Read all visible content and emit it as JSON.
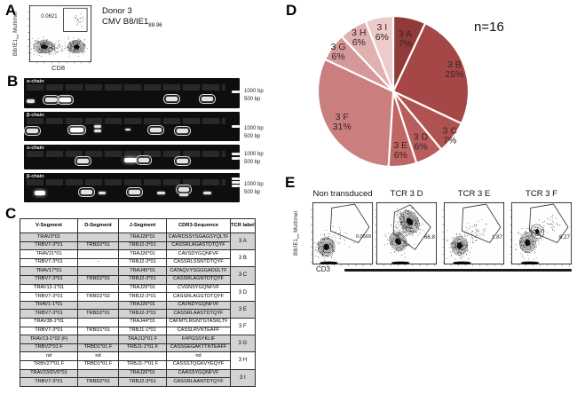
{
  "figure": {
    "panels": {
      "A": {
        "label": "A",
        "donor_line1": "Donor 3",
        "donor_line2_text": "CMV B8/IE1",
        "donor_line2_sub": "88-96",
        "gate_value": "0.0621",
        "x_axis": "CD8",
        "y_axis_text": "B8/IE1",
        "y_axis_sub": "tet",
        "y_axis_suffix": " Multimer"
      },
      "B": {
        "label": "B",
        "gels": [
          {
            "chain": "α-chain",
            "marker1": "1000 bp",
            "marker2": "500 bp"
          },
          {
            "chain": "β-chain",
            "marker1": "1000 bp",
            "marker2": "500 bp"
          },
          {
            "chain": "α-chain",
            "marker1": "1000 bp",
            "marker2": "500 bp"
          },
          {
            "chain": "β-chain",
            "marker1": "1000 bp",
            "marker2": "500 bp"
          }
        ]
      },
      "C": {
        "label": "C",
        "table": {
          "headers": [
            "V-Segment",
            "D-Segment",
            "J-Segment",
            "CDR3-Sequence",
            "TCR label"
          ],
          "groups": [
            {
              "tcr": "3 A",
              "rows": [
                [
                  "TRAV3*01",
                  "",
                  "TRAJ28*01",
                  "CAVRDSSYSGAGSYQLTF"
                ],
                [
                  "TRBV7-3*01",
                  "TRBD2*01",
                  "TRBJ2-3*01",
                  "CASSRLAGASTDTQYF"
                ]
              ]
            },
            {
              "tcr": "3 B",
              "rows": [
                [
                  "TRAV21*01",
                  "",
                  "TRAJ26*01",
                  "CAVSDYGQNFVF"
                ],
                [
                  "TRBV7-3*01",
                  "-",
                  "TRBJ2-3*01",
                  "CASSRLSSNTDTQYF"
                ]
              ]
            },
            {
              "tcr": "3 C",
              "rows": [
                [
                  "TRAV17*01",
                  "",
                  "TRAJ45*01",
                  "CATAQVYSGGGADGLTF"
                ],
                [
                  "TRBV7-3*01",
                  "TRBD2*01",
                  "TRBJ2-3*01",
                  "CASSRLAGNTDTQYF"
                ]
              ]
            },
            {
              "tcr": "3 D",
              "rows": [
                [
                  "TRAV12-1*01",
                  "",
                  "TRAJ26*01",
                  "CVGNSYGQNFVF"
                ],
                [
                  "TRBV7-3*01",
                  "TRBD2*02",
                  "TRBJ2-3*01",
                  "CASSRLAGGTDTQYF"
                ]
              ]
            },
            {
              "tcr": "3 E",
              "rows": [
                [
                  "TRAV1-1*01",
                  "",
                  "TRAJ26*01",
                  "CAVNDYGQNFVF"
                ],
                [
                  "TRBV7-3*01",
                  "TRBD2*01",
                  "TRBJ2-3*01",
                  "CASSRLAASTDTQYF"
                ]
              ]
            },
            {
              "tcr": "3 F",
              "rows": [
                [
                  "TRAV38-1*01",
                  "",
                  "TRAJ44*01",
                  "CAFMTLRGNTGTASKLTF"
                ],
                [
                  "TRBV7-3*01",
                  "TRBD1*01",
                  "TRBJ1-1*01",
                  "CASSLRVNTEAFF"
                ]
              ]
            },
            {
              "tcr": "3 G",
              "rows": [
                [
                  "TRAV13-1*02 (F)",
                  "",
                  "TRAJ12*01 F",
                  "F#PGSSYKLIF"
                ],
                [
                  "TRBV2*01 F",
                  "TRBD1*01 F",
                  "TRBJ1-1*01 F",
                  "CASSGEGAKTTNTEAFF"
                ]
              ]
            },
            {
              "tcr": "3 H",
              "rows": [
                [
                  "nd",
                  "nd",
                  "",
                  "nd"
                ],
                [
                  "TRBV27*01 F",
                  "TRBD1*01 F",
                  "TRBJ2-7*01 F",
                  "CASSSTQGKVYEQYF"
                ]
              ]
            },
            {
              "tcr": "3 I",
              "rows": [
                [
                  "TRAV23/DV6*01",
                  "",
                  "TRAJ26*01",
                  "CAASSYGQNFVF"
                ],
                [
                  "TRBV7-3*01",
                  "TRBD2*01",
                  "TRBJ2-3*01",
                  "CASSRLAANTDTQYF"
                ]
              ]
            }
          ]
        }
      },
      "D": {
        "label": "D",
        "annotation": "n=16"
      },
      "E": {
        "label": "E",
        "x_axis": "CD3",
        "y_axis_text": "B8/IE1",
        "y_axis_sub": "tet",
        "y_axis_suffix": " Multimer",
        "plots": [
          {
            "title": "Non transduced",
            "gate_value": "0.0569"
          },
          {
            "title": "TCR 3 D",
            "gate_value": "66.8"
          },
          {
            "title": "TCR 3 E",
            "gate_value": "1.87"
          },
          {
            "title": "TCR 3 F",
            "gate_value": "6.27"
          }
        ]
      }
    }
  },
  "chart_data": {
    "type": "pie",
    "title": "",
    "annotation": "n=16",
    "categories": [
      "3 A",
      "3 B",
      "3 C",
      "3 D",
      "3 E",
      "3 F",
      "3 G",
      "3 H",
      "3 I"
    ],
    "values": [
      7,
      25,
      7,
      6,
      6,
      31,
      6,
      6,
      6
    ],
    "unit": "%",
    "direction": "clockwise",
    "start_angle_deg": 0,
    "colors": [
      "#903a3a",
      "#a54747",
      "#b05252",
      "#b85c5c",
      "#c16565",
      "#ca7e7e",
      "#d59898",
      "#e0b1b1",
      "#edcbcb"
    ],
    "label_color": "#352424",
    "legend": "none"
  }
}
